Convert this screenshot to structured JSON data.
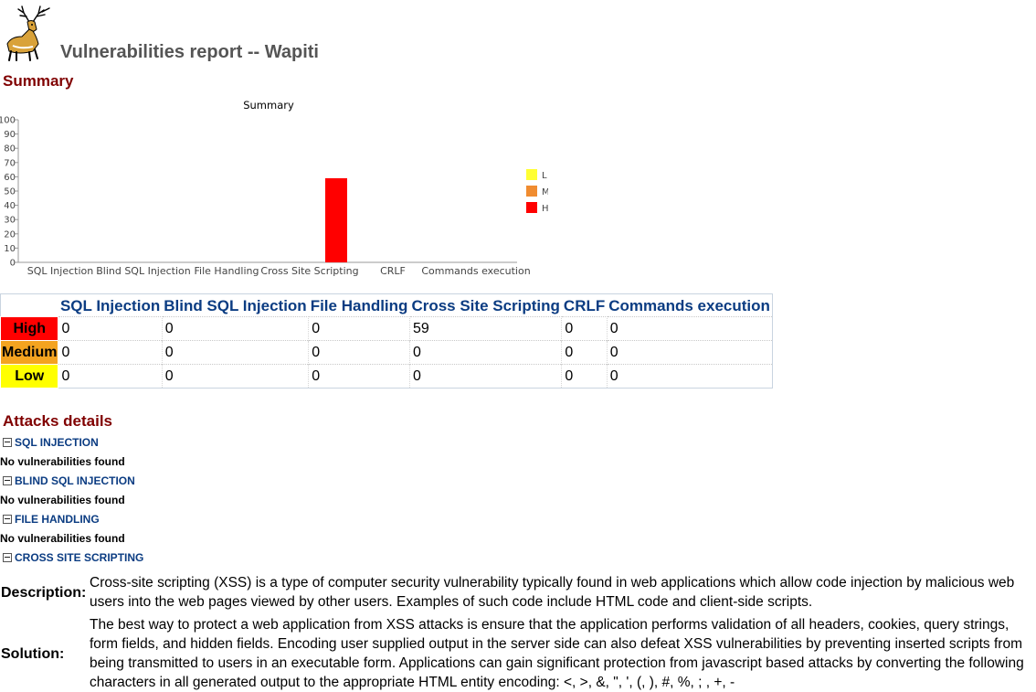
{
  "header": {
    "logo_icon": "deer-icon",
    "title": "Vulnerabilities report -- Wapiti"
  },
  "summary": {
    "section_title": "Summary"
  },
  "chart_data": {
    "type": "bar",
    "title": "Summary",
    "categories": [
      "SQL Injection",
      "Blind SQL Injection",
      "File Handling",
      "Cross Site Scripting",
      "CRLF",
      "Commands execution"
    ],
    "series": [
      {
        "name": "Low",
        "color": "#ffff33",
        "values": [
          0,
          0,
          0,
          0,
          0,
          0
        ]
      },
      {
        "name": "Medium",
        "color": "#f08c30",
        "values": [
          0,
          0,
          0,
          0,
          0,
          0
        ]
      },
      {
        "name": "High",
        "color": "#ff0000",
        "values": [
          0,
          0,
          0,
          59,
          0,
          0
        ]
      }
    ],
    "legend_labels": [
      "L",
      "M",
      "H"
    ],
    "yticks": [
      "0",
      "10",
      "20",
      "30",
      "40",
      "50",
      "60",
      "70",
      "80",
      "90",
      "100"
    ],
    "ylim": [
      0,
      100
    ],
    "legend": "right"
  },
  "table": {
    "headers": [
      "SQL Injection",
      "Blind SQL Injection",
      "File Handling",
      "Cross Site Scripting",
      "CRLF",
      "Commands execution"
    ],
    "rows": [
      {
        "level": "High",
        "color": "#ff0000",
        "values": [
          "0",
          "0",
          "0",
          "59",
          "0",
          "0"
        ]
      },
      {
        "level": "Medium",
        "color": "#f4a320",
        "values": [
          "0",
          "0",
          "0",
          "0",
          "0",
          "0"
        ]
      },
      {
        "level": "Low",
        "color": "#ffff00",
        "values": [
          "0",
          "0",
          "0",
          "0",
          "0",
          "0"
        ]
      }
    ]
  },
  "attacks": {
    "section_title": "Attacks details",
    "toggle_icon": "collapse-minus-icon",
    "sections": [
      {
        "title": "SQL INJECTION",
        "result": "No vulnerabilities found"
      },
      {
        "title": "BLIND SQL INJECTION",
        "result": "No vulnerabilities found"
      },
      {
        "title": "FILE HANDLING",
        "result": "No vulnerabilities found"
      },
      {
        "title": "CROSS SITE SCRIPTING"
      }
    ],
    "xss": {
      "description_label": "Description:",
      "description": "Cross-site scripting (XSS) is a type of computer security vulnerability typically found in web applications which allow code injection by malicious web users into the web pages viewed by other users. Examples of such code include HTML code and client-side scripts.",
      "solution_label": "Solution:",
      "solution": "The best way to protect a web application from XSS attacks is ensure that the application performs validation of all headers, cookies, query strings, form fields, and hidden fields. Encoding user supplied output in the server side can also defeat XSS vulnerabilities by preventing inserted scripts from being transmitted to users in an executable form. Applications can gain significant protection from javascript based attacks by converting the following characters in all generated output to the appropriate HTML entity encoding: <, >, &, \", ', (, ), #, %, ; , +, -"
    }
  }
}
